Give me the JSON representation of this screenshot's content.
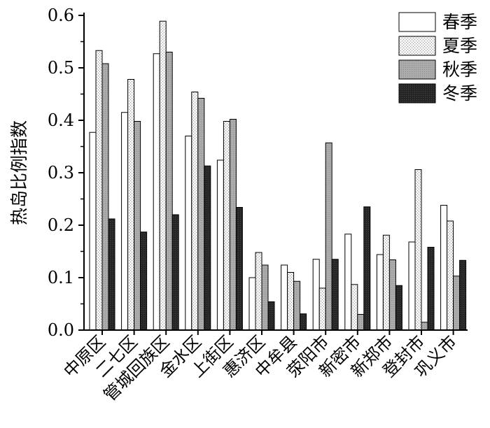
{
  "chart_data": {
    "type": "bar",
    "title": "",
    "xlabel": "",
    "ylabel": "热岛比例指数",
    "ylim": [
      0,
      0.6
    ],
    "yticks": [
      "0.0",
      "0.1",
      "0.2",
      "0.3",
      "0.4",
      "0.5",
      "0.6"
    ],
    "grid": false,
    "legend_position": "top-right",
    "categories": [
      "中原区",
      "二七区",
      "管城回族区",
      "金水区",
      "上街区",
      "惠济区",
      "中牟县",
      "荥阳市",
      "新密市",
      "新郑市",
      "登封市",
      "巩义市"
    ],
    "series": [
      {
        "name": "春季",
        "pattern": "white",
        "values": [
          0.377,
          0.415,
          0.527,
          0.37,
          0.324,
          0.1,
          0.124,
          0.135,
          0.183,
          0.144,
          0.168,
          0.238
        ]
      },
      {
        "name": "夏季",
        "pattern": "light-dotted",
        "values": [
          0.533,
          0.478,
          0.589,
          0.454,
          0.398,
          0.148,
          0.11,
          0.08,
          0.087,
          0.181,
          0.306,
          0.208
        ]
      },
      {
        "name": "秋季",
        "pattern": "gray",
        "values": [
          0.508,
          0.398,
          0.53,
          0.442,
          0.402,
          0.124,
          0.093,
          0.357,
          0.03,
          0.134,
          0.015,
          0.103
        ]
      },
      {
        "name": "冬季",
        "pattern": "dark",
        "values": [
          0.212,
          0.187,
          0.22,
          0.313,
          0.234,
          0.054,
          0.031,
          0.135,
          0.235,
          0.085,
          0.158,
          0.133
        ]
      }
    ],
    "colors": {
      "春季": "#ffffff",
      "夏季": "#ececec",
      "秋季": "#a9a9a9",
      "冬季": "#222222",
      "axis": "#000000"
    }
  }
}
